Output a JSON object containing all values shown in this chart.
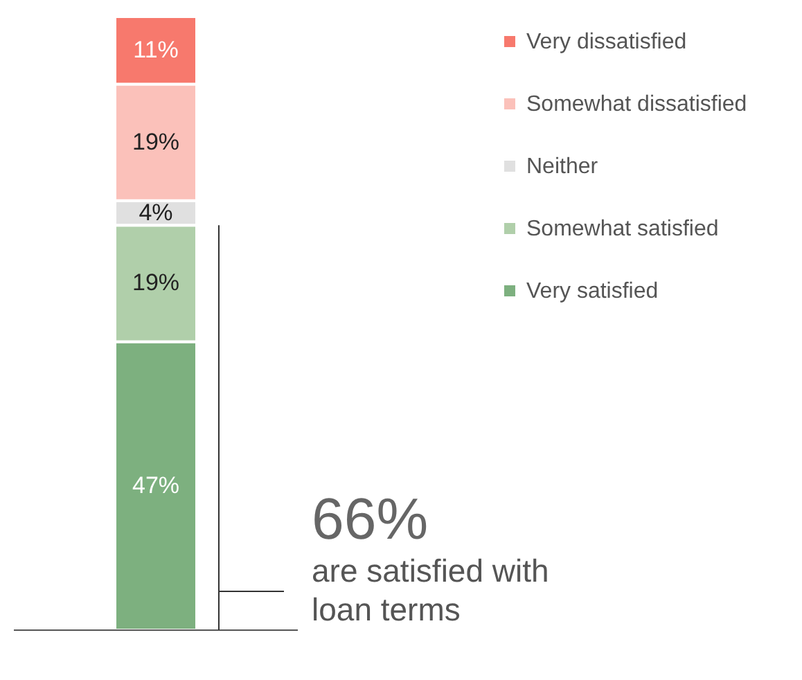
{
  "chart_data": {
    "type": "bar",
    "stacked": true,
    "categories": [
      null
    ],
    "series": [
      {
        "name": "Very satisfied",
        "color": "#7db07f",
        "values": [
          47
        ],
        "value_labels": [
          "47%"
        ]
      },
      {
        "name": "Somewhat satisfied",
        "color": "#b0cfaa",
        "values": [
          19
        ],
        "value_labels": [
          "19%"
        ]
      },
      {
        "name": "Neither",
        "color": "#e0e0e0",
        "values": [
          4
        ],
        "value_labels": [
          "4%"
        ]
      },
      {
        "name": "Somewhat dissatisfied",
        "color": "#fbc1ba",
        "values": [
          19
        ],
        "value_labels": [
          "19%"
        ]
      },
      {
        "name": "Very dissatisfied",
        "color": "#f7796d",
        "values": [
          11
        ],
        "value_labels": [
          "11%"
        ]
      }
    ],
    "ylim": [
      0,
      100
    ],
    "legend": "top right",
    "annotations": [
      "66%",
      "are satisfied with loan terms"
    ]
  }
}
